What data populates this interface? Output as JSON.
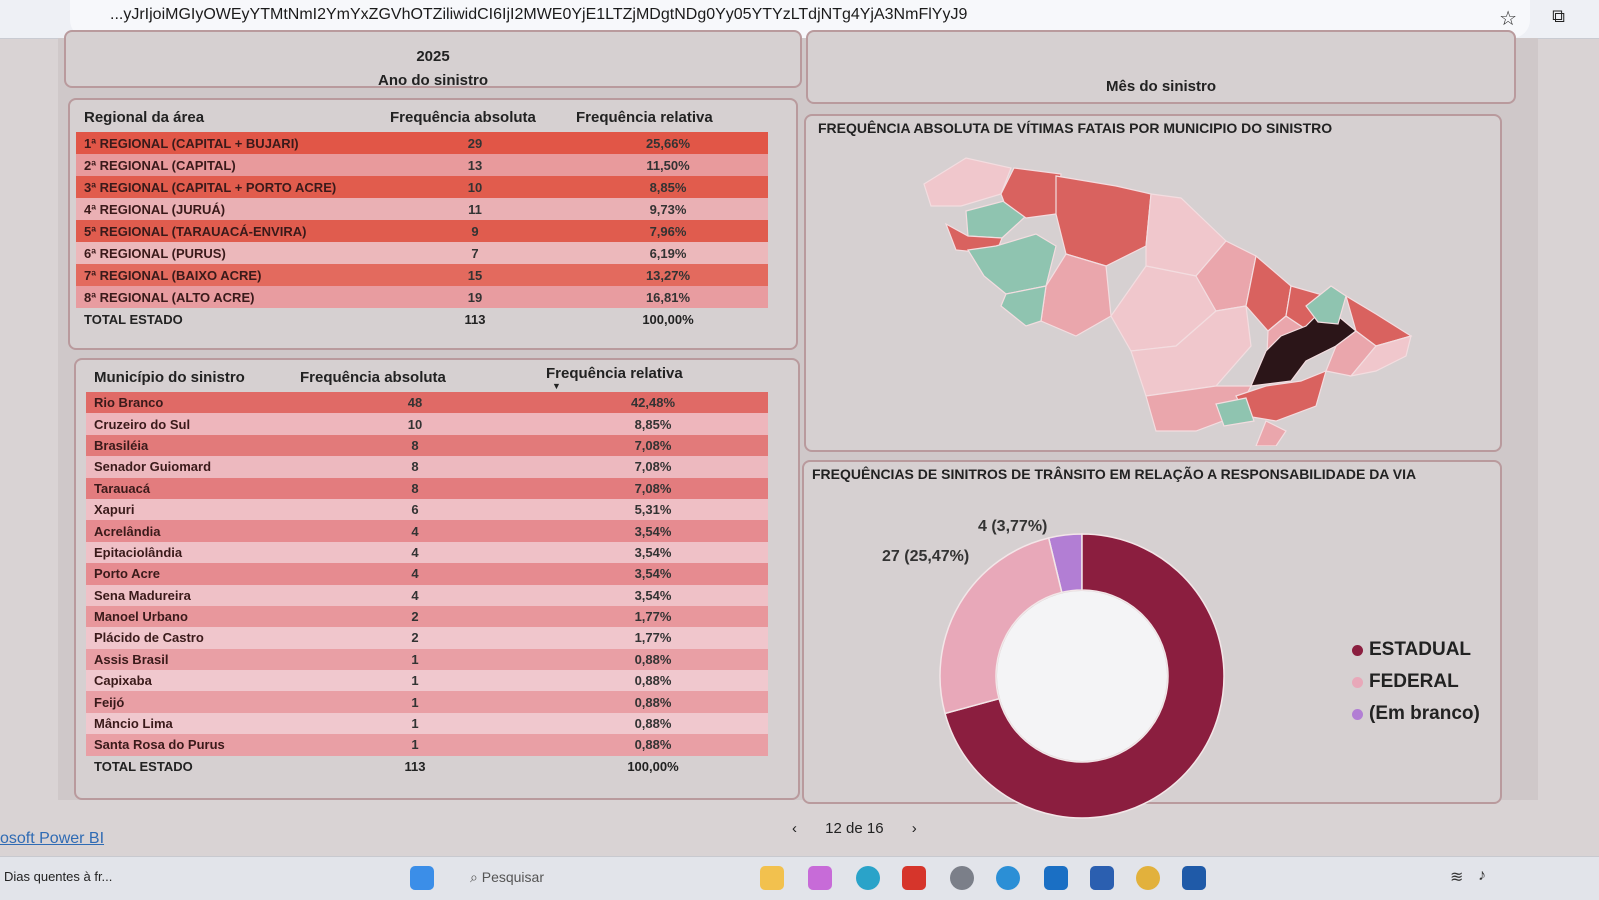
{
  "browser": {
    "url": "...yJrIjoiMGIyOWEyYTMtNmI2YmYxZGVhOTZiliwidCI6IjI2MWE0YjE1LTZjMDgtNDg0Yy05YTYzLTdjNTg4YjA3NmFlYyJ9"
  },
  "slicers": {
    "year": {
      "value": "2025",
      "label": "Ano do sinistro"
    },
    "month": {
      "label": "Mês do sinistro"
    }
  },
  "regional_table": {
    "headers": [
      "Regional da área",
      "Frequência absoluta",
      "Frequência relativa"
    ],
    "rows": [
      {
        "label": "1ª REGIONAL (CAPITAL + BUJARI)",
        "abs": "29",
        "rel": "25,66%",
        "color": "#e15647"
      },
      {
        "label": "2ª REGIONAL (CAPITAL)",
        "abs": "13",
        "rel": "11,50%",
        "color": "#e89a9c"
      },
      {
        "label": "3ª REGIONAL (CAPITAL + PORTO ACRE)",
        "abs": "10",
        "rel": "8,85%",
        "color": "#e15c4d"
      },
      {
        "label": "4ª REGIONAL (JURUÁ)",
        "abs": "11",
        "rel": "9,73%",
        "color": "#eab0b4"
      },
      {
        "label": "5ª REGIONAL (TARAUACÁ-ENVIRA)",
        "abs": "9",
        "rel": "7,96%",
        "color": "#e05c4e"
      },
      {
        "label": "6ª REGIONAL (PURUS)",
        "abs": "7",
        "rel": "6,19%",
        "color": "#ecb8bb"
      },
      {
        "label": "7ª REGIONAL (BAIXO ACRE)",
        "abs": "15",
        "rel": "13,27%",
        "color": "#e36a5e"
      },
      {
        "label": "8ª REGIONAL (ALTO ACRE)",
        "abs": "19",
        "rel": "16,81%",
        "color": "#e89ca0"
      }
    ],
    "total": {
      "label": "TOTAL ESTADO",
      "abs": "113",
      "rel": "100,00%"
    }
  },
  "municipio_table": {
    "headers": [
      "Município do sinistro",
      "Frequência absoluta",
      "Frequência relativa"
    ],
    "rows": [
      {
        "label": "Rio Branco",
        "abs": "48",
        "rel": "42,48%",
        "color": "#e06a66"
      },
      {
        "label": "Cruzeiro do Sul",
        "abs": "10",
        "rel": "8,85%",
        "color": "#eeb6bc"
      },
      {
        "label": "Brasiléia",
        "abs": "8",
        "rel": "7,08%",
        "color": "#e27a7a"
      },
      {
        "label": "Senador Guiomard",
        "abs": "8",
        "rel": "7,08%",
        "color": "#edb9bf"
      },
      {
        "label": "Tarauacá",
        "abs": "8",
        "rel": "7,08%",
        "color": "#e37c7e"
      },
      {
        "label": "Xapuri",
        "abs": "6",
        "rel": "5,31%",
        "color": "#efbfc5"
      },
      {
        "label": "Acrelândia",
        "abs": "4",
        "rel": "3,54%",
        "color": "#e68b90"
      },
      {
        "label": "Epitaciolândia",
        "abs": "4",
        "rel": "3,54%",
        "color": "#efc1c7"
      },
      {
        "label": "Porto Acre",
        "abs": "4",
        "rel": "3,54%",
        "color": "#e68b90"
      },
      {
        "label": "Sena Madureira",
        "abs": "4",
        "rel": "3,54%",
        "color": "#efc1c7"
      },
      {
        "label": "Manoel Urbano",
        "abs": "2",
        "rel": "1,77%",
        "color": "#e8979c"
      },
      {
        "label": "Plácido de Castro",
        "abs": "2",
        "rel": "1,77%",
        "color": "#f0c6cc"
      },
      {
        "label": "Assis Brasil",
        "abs": "1",
        "rel": "0,88%",
        "color": "#e99fa5"
      },
      {
        "label": "Capixaba",
        "abs": "1",
        "rel": "0,88%",
        "color": "#f0c8ce"
      },
      {
        "label": "Feijó",
        "abs": "1",
        "rel": "0,88%",
        "color": "#e99fa5"
      },
      {
        "label": "Mâncio Lima",
        "abs": "1",
        "rel": "0,88%",
        "color": "#f0c8ce"
      },
      {
        "label": "Santa Rosa do Purus",
        "abs": "1",
        "rel": "0,88%",
        "color": "#e99fa5"
      }
    ],
    "total": {
      "label": "TOTAL ESTADO",
      "abs": "113",
      "rel": "100,00%"
    }
  },
  "map": {
    "title": "FREQUÊNCIA ABSOLUTA DE VÍTIMAS FATAIS POR MUNICIPIO DO SINISTRO",
    "colors": {
      "dark": "#2b1518",
      "red": "#d9625f",
      "pink": "#eaa6ac",
      "light": "#f0c7cc",
      "green": "#8fc4b0"
    }
  },
  "donut": {
    "title": "FREQUÊNCIAS DE SINITROS DE TRÂNSITO EM RELAÇÃO A RESPONSABILIDADE DA VIA",
    "labels": {
      "em_branco": "4 (3,77%)",
      "federal": "27 (25,47%)"
    },
    "legend": [
      "ESTADUAL",
      "FEDERAL",
      "(Em branco)"
    ]
  },
  "chart_data": {
    "type": "pie",
    "categories": [
      "ESTADUAL",
      "FEDERAL",
      "(Em branco)"
    ],
    "values": [
      75,
      27,
      4
    ],
    "percent": [
      70.75,
      25.47,
      3.77
    ],
    "colors": [
      "#8b1e3f",
      "#e8a8b9",
      "#b27ed4"
    ],
    "legend_position": "right"
  },
  "footer": {
    "powerbi_link": "osoft Power BI",
    "page_indicator": "12 de 16",
    "prev": "‹",
    "next": "›"
  },
  "taskbar": {
    "news": "Dias quentes à fr...",
    "search_placeholder": "Pesquisar"
  }
}
